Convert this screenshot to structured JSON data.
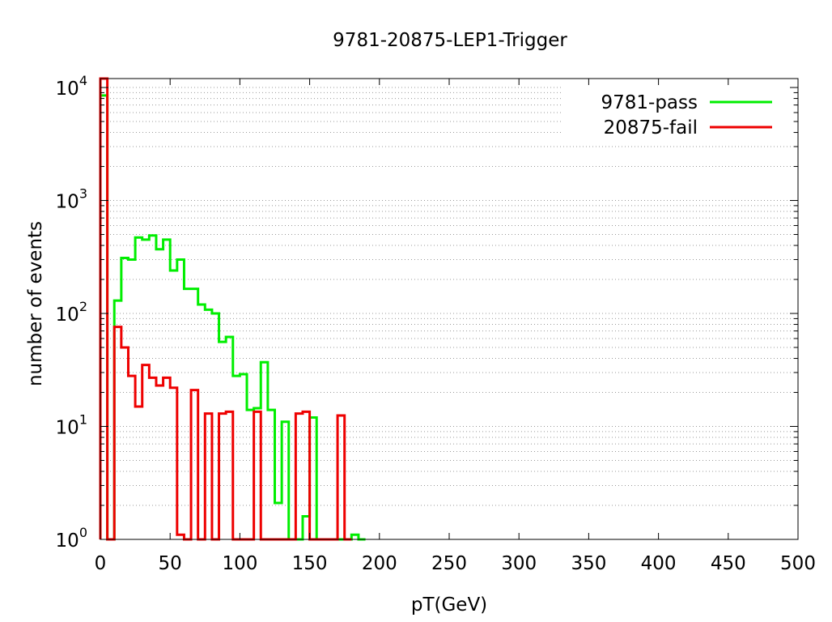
{
  "chart_data": {
    "type": "histogram-step",
    "title": "9781-20875-LEP1-Trigger",
    "xlabel": "pT(GeV)",
    "ylabel": "number of events",
    "xlim": [
      0,
      500
    ],
    "ylim": [
      1,
      12000
    ],
    "yscale": "log",
    "x_ticks": [
      "0",
      "50",
      "100",
      "150",
      "200",
      "250",
      "300",
      "350",
      "400",
      "450",
      "500"
    ],
    "y_ticks": [
      {
        "base": "10",
        "exp": "0",
        "value": 1
      },
      {
        "base": "10",
        "exp": "1",
        "value": 10
      },
      {
        "base": "10",
        "exp": "2",
        "value": 100
      },
      {
        "base": "10",
        "exp": "3",
        "value": 1000
      },
      {
        "base": "10",
        "exp": "4",
        "value": 10000
      }
    ],
    "grid": "horizontal-dotted",
    "legend_position": "top-right",
    "bin_width": 5,
    "series": [
      {
        "name": "9781-pass",
        "color": "#00ee00",
        "bins": [
          [
            0,
            8500
          ],
          [
            5,
            0
          ],
          [
            10,
            130
          ],
          [
            15,
            310
          ],
          [
            20,
            300
          ],
          [
            25,
            470
          ],
          [
            30,
            450
          ],
          [
            35,
            490
          ],
          [
            40,
            370
          ],
          [
            45,
            450
          ],
          [
            50,
            240
          ],
          [
            55,
            300
          ],
          [
            60,
            165
          ],
          [
            65,
            165
          ],
          [
            70,
            120
          ],
          [
            75,
            108
          ],
          [
            80,
            100
          ],
          [
            85,
            56
          ],
          [
            90,
            62
          ],
          [
            95,
            28
          ],
          [
            100,
            29
          ],
          [
            105,
            14
          ],
          [
            110,
            14.5
          ],
          [
            115,
            37
          ],
          [
            120,
            14
          ],
          [
            125,
            2.1
          ],
          [
            130,
            11
          ],
          [
            135,
            0
          ],
          [
            140,
            0
          ],
          [
            145,
            1.6
          ],
          [
            150,
            12
          ],
          [
            155,
            0
          ],
          [
            160,
            0
          ],
          [
            165,
            0
          ],
          [
            170,
            0
          ],
          [
            175,
            0
          ],
          [
            180,
            1.1
          ],
          [
            185,
            0
          ]
        ]
      },
      {
        "name": "20875-fail",
        "color": "#ee0000",
        "bins": [
          [
            0,
            12000
          ],
          [
            5,
            0
          ],
          [
            10,
            76
          ],
          [
            15,
            50
          ],
          [
            20,
            28
          ],
          [
            25,
            15
          ],
          [
            30,
            35
          ],
          [
            35,
            27
          ],
          [
            40,
            23
          ],
          [
            45,
            27
          ],
          [
            50,
            22
          ],
          [
            55,
            1.1
          ],
          [
            60,
            0
          ],
          [
            65,
            21
          ],
          [
            70,
            0
          ],
          [
            75,
            13
          ],
          [
            80,
            0
          ],
          [
            85,
            13
          ],
          [
            90,
            13.5
          ],
          [
            95,
            0
          ],
          [
            100,
            0
          ],
          [
            105,
            0
          ],
          [
            110,
            13.5
          ],
          [
            115,
            0
          ],
          [
            120,
            0
          ],
          [
            125,
            0
          ],
          [
            130,
            0
          ],
          [
            135,
            0
          ],
          [
            140,
            13
          ],
          [
            145,
            13.5
          ],
          [
            150,
            0
          ],
          [
            155,
            0
          ],
          [
            160,
            0
          ],
          [
            165,
            0
          ],
          [
            170,
            12.5
          ],
          [
            175,
            0
          ]
        ]
      }
    ]
  }
}
